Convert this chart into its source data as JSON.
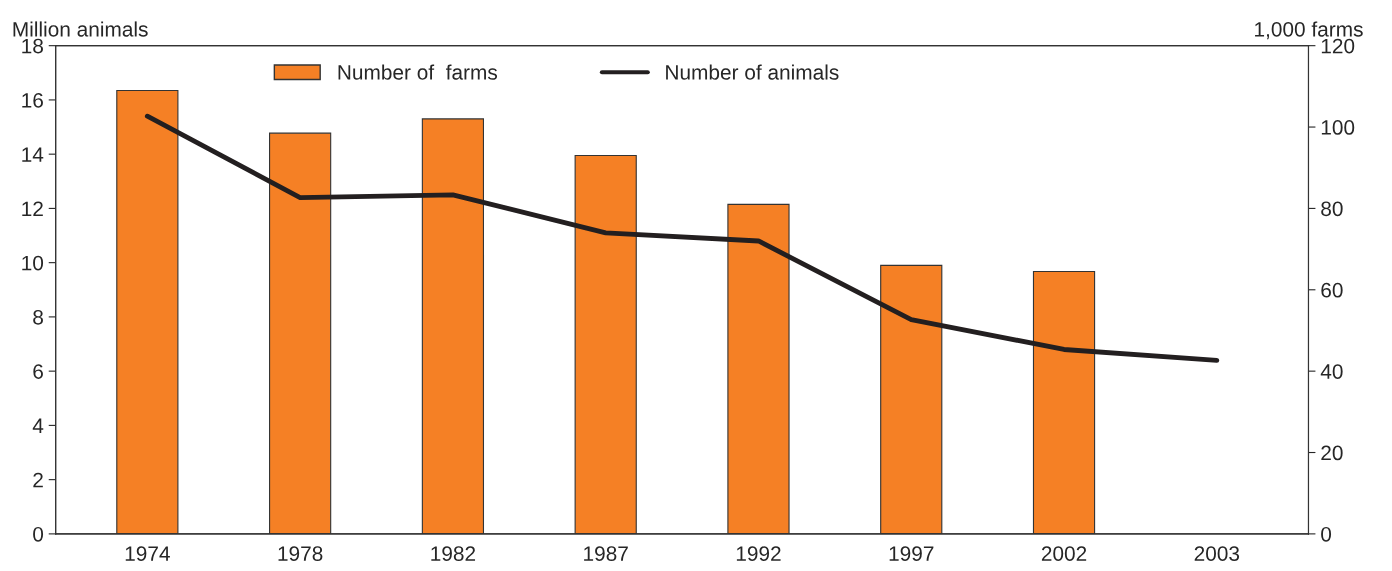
{
  "chart_data": {
    "type": "bar",
    "ylabel": "Million animals",
    "y2label": "1,000 farms",
    "categories": [
      "1974",
      "1978",
      "1982",
      "1987",
      "1992",
      "1997",
      "2002",
      "2003"
    ],
    "series": [
      {
        "name": "Number of  farms",
        "axis": "y2",
        "color": "#f58025",
        "values": [
          109,
          98.5,
          102,
          93,
          81,
          66,
          64.5,
          null
        ]
      },
      {
        "name": "Number of animals",
        "type": "line",
        "axis": "y",
        "color": "#231f20",
        "values": [
          15.4,
          12.4,
          12.5,
          11.1,
          10.8,
          7.9,
          6.8,
          6.4
        ]
      }
    ],
    "ylim": [
      0,
      18
    ],
    "yticks": [
      0,
      2,
      4,
      6,
      8,
      10,
      12,
      14,
      16,
      18
    ],
    "y2lim": [
      0,
      120
    ],
    "y2ticks": [
      0,
      20,
      40,
      60,
      80,
      100,
      120
    ],
    "grid": false,
    "legend": "top",
    "marker": "none",
    "line_style": "solid"
  }
}
